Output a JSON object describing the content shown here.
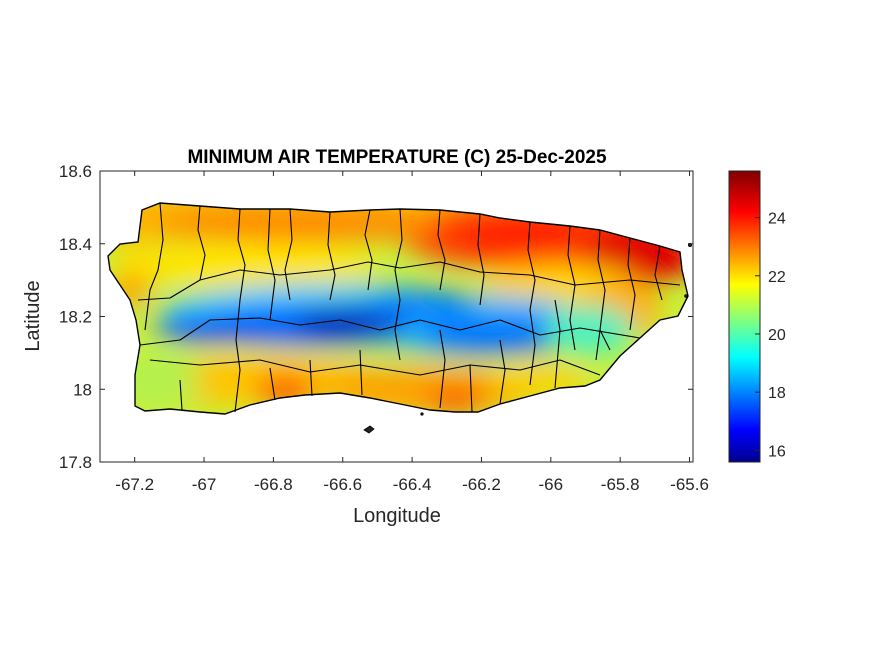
{
  "map": {
    "title": "MINIMUM AIR TEMPERATURE (C) 25-Dec-2025",
    "xlabel": "Longitude",
    "ylabel": "Latitude",
    "x_range": [
      -67.3,
      -65.59
    ],
    "y_range": [
      17.8,
      18.6
    ],
    "x_ticks": [
      "-67.2",
      "-67",
      "-66.8",
      "-66.6",
      "-66.4",
      "-66.2",
      "-66",
      "-65.8",
      "-65.6"
    ],
    "x_tick_values": [
      -67.2,
      -67.0,
      -66.8,
      -66.6,
      -66.4,
      -66.2,
      -66.0,
      -65.8,
      -65.6
    ],
    "y_ticks": [
      "18.6",
      "18.4",
      "18.2",
      "18",
      "17.8"
    ],
    "y_tick_values": [
      18.6,
      18.4,
      18.2,
      18.0,
      17.8
    ],
    "colorbar": {
      "colormap": "jet",
      "range": [
        15.6,
        25.6
      ],
      "ticks": [
        "24",
        "22",
        "20",
        "18",
        "16"
      ],
      "tick_values": [
        24,
        22,
        20,
        18,
        16
      ]
    },
    "region": "Puerto Rico municipalities",
    "colors": {
      "coldest": "#00008f",
      "cold": "#0050ff",
      "cool": "#00dfff",
      "mild": "#7fff7f",
      "warm": "#ffdf00",
      "hot": "#ff3000",
      "hottest": "#800000"
    }
  }
}
